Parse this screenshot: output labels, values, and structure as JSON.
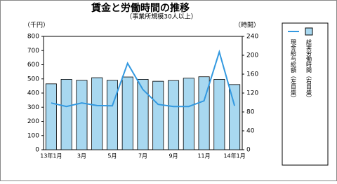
{
  "chart_data": {
    "type": "bar-line",
    "title": "賃金と労働時間の推移",
    "subtitle": "（事業所規模30人以上）",
    "y_unit": "（千円）",
    "y2_unit": "（時間）",
    "categories": [
      "13年1月",
      null,
      "3月",
      null,
      "5月",
      null,
      "7月",
      null,
      "9月",
      null,
      "11月",
      null,
      "14年1月"
    ],
    "series": [
      {
        "name": "現金給与総額（左目盛）",
        "type": "line",
        "color": "#3399e0",
        "values": [
          330,
          305,
          330,
          312,
          310,
          610,
          425,
          320,
          305,
          305,
          345,
          690,
          310
        ]
      },
      {
        "name": "総実労働時間（右目盛）",
        "type": "bar",
        "color": "#a8d8f0",
        "axis": "y2",
        "values": [
          139.5,
          149,
          147,
          152.5,
          147,
          154,
          149,
          145,
          146.5,
          151.5,
          154.5,
          149,
          138
        ]
      }
    ],
    "ylim": [
      0,
      800
    ],
    "yticks": [
      0,
      100,
      200,
      300,
      400,
      500,
      600,
      700,
      800
    ],
    "y2lim": [
      0,
      240
    ],
    "y2ticks": [
      0,
      40,
      80,
      120,
      160,
      200,
      240
    ]
  }
}
